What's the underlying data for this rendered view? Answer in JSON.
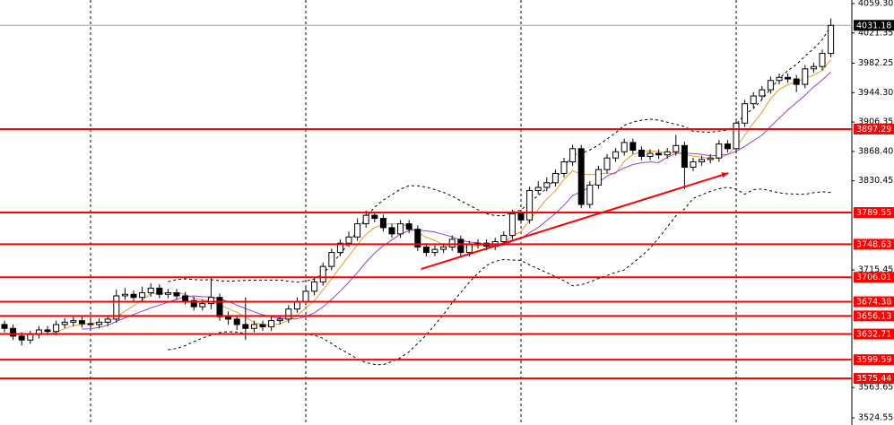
{
  "chart_data": {
    "type": "candlestick",
    "open": [
      3645,
      3640,
      3630,
      3625,
      3632,
      3638,
      3636,
      3645,
      3648,
      3650,
      3646,
      3645,
      3648,
      3652,
      3682,
      3684,
      3680,
      3686,
      3692,
      3684,
      3686,
      3682,
      3676,
      3668,
      3672,
      3680,
      3655,
      3652,
      3645,
      3640,
      3645,
      3642,
      3650,
      3652,
      3665,
      3675,
      3688,
      3700,
      3720,
      3738,
      3750,
      3758,
      3775,
      3786,
      3782,
      3770,
      3762,
      3775,
      3768,
      3745,
      3738,
      3742,
      3745,
      3755,
      3738,
      3748,
      3750,
      3746,
      3752,
      3760,
      3788,
      3780,
      3818,
      3822,
      3828,
      3840,
      3855,
      3872,
      3800,
      3825,
      3845,
      3860,
      3868,
      3880,
      3870,
      3862,
      3866,
      3864,
      3868,
      3876,
      3848,
      3855,
      3858,
      3860,
      3878,
      3872,
      3905,
      3930,
      3940,
      3948,
      3960,
      3964,
      3962,
      3955,
      3975,
      3978,
      3995
    ],
    "high": [
      3650,
      3645,
      3635,
      3637,
      3643,
      3643,
      3650,
      3653,
      3655,
      3655,
      3651,
      3653,
      3657,
      3690,
      3692,
      3689,
      3694,
      3698,
      3697,
      3691,
      3691,
      3687,
      3681,
      3677,
      3705,
      3685,
      3662,
      3657,
      3680,
      3650,
      3650,
      3655,
      3657,
      3670,
      3680,
      3693,
      3705,
      3725,
      3743,
      3755,
      3765,
      3782,
      3792,
      3791,
      3787,
      3775,
      3780,
      3780,
      3773,
      3750,
      3747,
      3750,
      3760,
      3760,
      3753,
      3755,
      3755,
      3757,
      3765,
      3793,
      3793,
      3823,
      3830,
      3835,
      3845,
      3860,
      3877,
      3877,
      3830,
      3850,
      3865,
      3873,
      3885,
      3885,
      3875,
      3871,
      3871,
      3873,
      3890,
      3881,
      3860,
      3863,
      3865,
      3883,
      3883,
      3910,
      3935,
      3945,
      3953,
      3965,
      3969,
      3969,
      3967,
      3980,
      3983,
      4000,
      4040
    ],
    "low": [
      3635,
      3625,
      3618,
      3620,
      3627,
      3631,
      3631,
      3640,
      3643,
      3641,
      3640,
      3640,
      3643,
      3647,
      3677,
      3675,
      3675,
      3681,
      3679,
      3679,
      3677,
      3671,
      3663,
      3663,
      3665,
      3650,
      3645,
      3638,
      3625,
      3635,
      3637,
      3637,
      3645,
      3647,
      3660,
      3670,
      3683,
      3695,
      3715,
      3733,
      3745,
      3753,
      3770,
      3777,
      3765,
      3757,
      3757,
      3763,
      3740,
      3733,
      3733,
      3737,
      3740,
      3733,
      3733,
      3743,
      3741,
      3741,
      3747,
      3755,
      3775,
      3775,
      3813,
      3817,
      3823,
      3835,
      3850,
      3795,
      3795,
      3820,
      3840,
      3855,
      3863,
      3865,
      3857,
      3857,
      3859,
      3859,
      3863,
      3820,
      3843,
      3850,
      3853,
      3855,
      3867,
      3867,
      3900,
      3925,
      3935,
      3943,
      3955,
      3957,
      3945,
      3950,
      3970,
      3973,
      3990
    ],
    "close": [
      3640,
      3630,
      3625,
      3632,
      3638,
      3636,
      3645,
      3648,
      3650,
      3646,
      3645,
      3648,
      3652,
      3682,
      3684,
      3680,
      3686,
      3692,
      3684,
      3686,
      3682,
      3676,
      3668,
      3672,
      3680,
      3655,
      3652,
      3645,
      3640,
      3645,
      3642,
      3650,
      3652,
      3665,
      3675,
      3688,
      3700,
      3720,
      3738,
      3750,
      3758,
      3775,
      3786,
      3782,
      3770,
      3762,
      3775,
      3768,
      3745,
      3738,
      3742,
      3745,
      3755,
      3738,
      3748,
      3750,
      3746,
      3752,
      3760,
      3788,
      3780,
      3818,
      3822,
      3828,
      3840,
      3855,
      3872,
      3800,
      3825,
      3845,
      3860,
      3868,
      3880,
      3870,
      3862,
      3866,
      3864,
      3868,
      3876,
      3848,
      3855,
      3858,
      3860,
      3878,
      3872,
      3905,
      3930,
      3940,
      3948,
      3960,
      3964,
      3962,
      3955,
      3975,
      3978,
      3995,
      4031.18
    ],
    "ylim": [
      3515.3,
      4063.9
    ],
    "yticks": [
      {
        "value": 4059.3,
        "label": "4059.30"
      },
      4021.35,
      3982.25,
      {
        "value": 3944.3,
        "label": "3944.30"
      },
      3906.35,
      {
        "value": 3868.4,
        "label": "3868.40"
      },
      3830.45,
      3715.45,
      3563.65,
      3524.55
    ],
    "levels": [
      3897.29,
      3789.55,
      3748.63,
      3706.01,
      3674.38,
      3656.13,
      3632.71,
      3599.59,
      3575.44
    ],
    "level_color": "#ff0000",
    "separators": [
      10,
      35,
      60,
      85
    ],
    "indicators": [
      {
        "kind": "ma",
        "period": 5,
        "color": "#e89a2c"
      },
      {
        "kind": "ma",
        "period": 10,
        "color": "#9a3fd0"
      },
      {
        "kind": "bands",
        "period": 20,
        "deviations": 2,
        "color": "#000000"
      }
    ],
    "trendline": {
      "color": "#ff0000",
      "points": [
        [
          48.4,
          3716.6
        ],
        [
          84.1,
          3840.5
        ]
      ]
    }
  }
}
